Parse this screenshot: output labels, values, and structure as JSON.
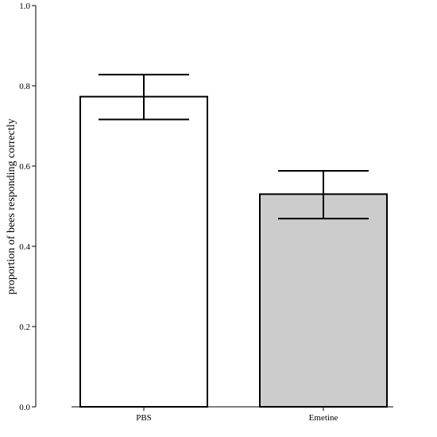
{
  "chart_data": {
    "type": "bar",
    "categories": [
      "PBS",
      "Emetine"
    ],
    "values": [
      0.773,
      0.53
    ],
    "error_low": [
      0.716,
      0.469
    ],
    "error_high": [
      0.828,
      0.588
    ],
    "bar_colors": [
      "#ffffff",
      "#cccccc"
    ],
    "ylabel": "proportion of bees responding correctly",
    "xlabel": "",
    "ylim": [
      0.0,
      1.0
    ],
    "yticks": [
      "0.0",
      "0.2",
      "0.4",
      "0.6",
      "0.8",
      "1.0"
    ],
    "grid": false,
    "legend": "none"
  }
}
